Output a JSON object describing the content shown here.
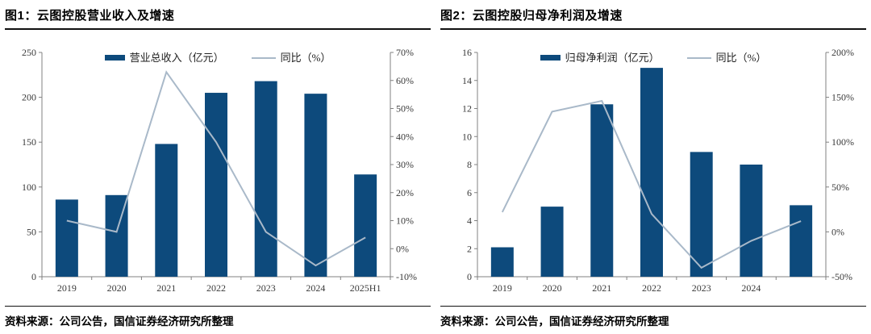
{
  "page": {
    "background": "#ffffff"
  },
  "colors": {
    "bar": "#0d4a7c",
    "line": "#a9b9c9",
    "axis": "#808080",
    "tick_label": "#3a3a3a",
    "rule": "#111111"
  },
  "panels": [
    {
      "title": "图1：云图控股营业收入及增速",
      "source": "资料来源：公司公告，国信证券经济研究所整理"
    },
    {
      "title": "图2：云图控股归母净利润及增速",
      "source": "资料来源：公司公告，国信证券经济研究所整理"
    }
  ],
  "chart_data": [
    {
      "type": "bar",
      "title": "图1：云图控股营业收入及增速",
      "categories": [
        "2019",
        "2020",
        "2021",
        "2022",
        "2023",
        "2024",
        "2025H1"
      ],
      "series": [
        {
          "name": "营业总收入（亿元）",
          "type": "bar",
          "axis": "left",
          "values": [
            86,
            91,
            148,
            205,
            218,
            204,
            114
          ]
        },
        {
          "name": "同比（%）",
          "type": "line",
          "axis": "right",
          "values": [
            10,
            6,
            63,
            38,
            6,
            -6,
            4
          ]
        }
      ],
      "left_axis": {
        "min": 0,
        "max": 250,
        "ticks": [
          0,
          50,
          100,
          150,
          200,
          250
        ],
        "tick_labels": [
          "0",
          "50",
          "100",
          "150",
          "200",
          "250"
        ]
      },
      "right_axis": {
        "min": -10,
        "max": 70,
        "ticks": [
          -10,
          0,
          10,
          20,
          30,
          40,
          50,
          60,
          70
        ],
        "tick_labels": [
          "-10%",
          "0%",
          "10%",
          "20%",
          "30%",
          "40%",
          "50%",
          "60%",
          "70%"
        ]
      },
      "legend_position": "top",
      "grid": false
    },
    {
      "type": "bar",
      "title": "图2：云图控股归母净利润及增速",
      "categories": [
        "2019",
        "2020",
        "2021",
        "2022",
        "2023",
        "2024",
        ""
      ],
      "series": [
        {
          "name": "归母净利润（亿元）",
          "type": "bar",
          "axis": "left",
          "values": [
            2.1,
            5.0,
            12.3,
            14.9,
            8.9,
            8.0,
            5.1
          ]
        },
        {
          "name": "同比（%）",
          "type": "line",
          "axis": "right",
          "values": [
            22,
            134,
            146,
            20,
            -40,
            -10,
            12
          ]
        }
      ],
      "left_axis": {
        "min": 0,
        "max": 16,
        "ticks": [
          0,
          2,
          4,
          6,
          8,
          10,
          12,
          14,
          16
        ],
        "tick_labels": [
          "0",
          "2",
          "4",
          "6",
          "8",
          "10",
          "12",
          "14",
          "16"
        ]
      },
      "right_axis": {
        "min": -50,
        "max": 200,
        "ticks": [
          -50,
          0,
          50,
          100,
          150,
          200
        ],
        "tick_labels": [
          "-50%",
          "0%",
          "50%",
          "100%",
          "150%",
          "200%"
        ]
      },
      "legend_position": "top",
      "grid": false
    }
  ]
}
